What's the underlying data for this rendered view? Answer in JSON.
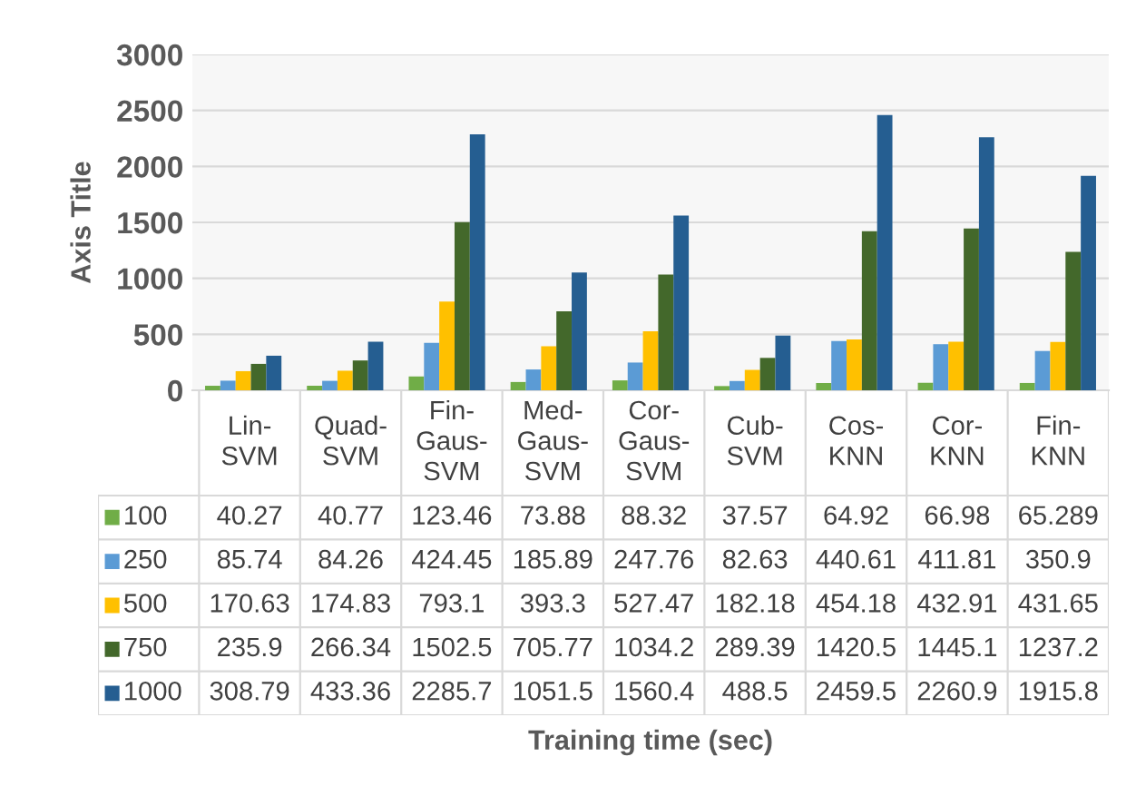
{
  "chart_data": {
    "type": "bar",
    "annotations": [
      "Training time (sec)"
    ],
    "ylabel": "Axis Title",
    "categories": [
      "Lin-SVM",
      "Quad-SVM",
      "Fin-Gaus-SVM",
      "Med-Gaus-SVM",
      "Cor-Gaus-SVM",
      "Cub-SVM",
      "Cos-KNN",
      "Cor-KNN",
      "Fin-KNN"
    ],
    "series": [
      {
        "name": "100",
        "color": "#70ad47",
        "values": [
          40.27,
          40.77,
          123.46,
          73.88,
          88.32,
          37.57,
          64.92,
          66.98,
          65.289
        ]
      },
      {
        "name": "250",
        "color": "#5b9bd5",
        "values": [
          85.74,
          84.26,
          424.45,
          185.89,
          247.76,
          82.63,
          440.61,
          411.81,
          350.9
        ]
      },
      {
        "name": "500",
        "color": "#ffc000",
        "values": [
          170.63,
          174.83,
          793.1,
          393.3,
          527.47,
          182.18,
          454.18,
          432.91,
          431.65
        ]
      },
      {
        "name": "750",
        "color": "#43682b",
        "values": [
          235.9,
          266.34,
          1502.5,
          705.77,
          1034.2,
          289.39,
          1420.5,
          1445.1,
          1237.2
        ]
      },
      {
        "name": "1000",
        "color": "#255e91",
        "values": [
          308.79,
          433.36,
          2285.7,
          1051.5,
          1560.4,
          488.5,
          2459.5,
          2260.9,
          1915.8
        ]
      }
    ],
    "ylim": [
      0,
      3000
    ],
    "yticks": [
      0,
      500,
      1000,
      1500,
      2000,
      2500,
      3000
    ],
    "grid": "y",
    "data_labels": true,
    "legend": "bottom"
  }
}
